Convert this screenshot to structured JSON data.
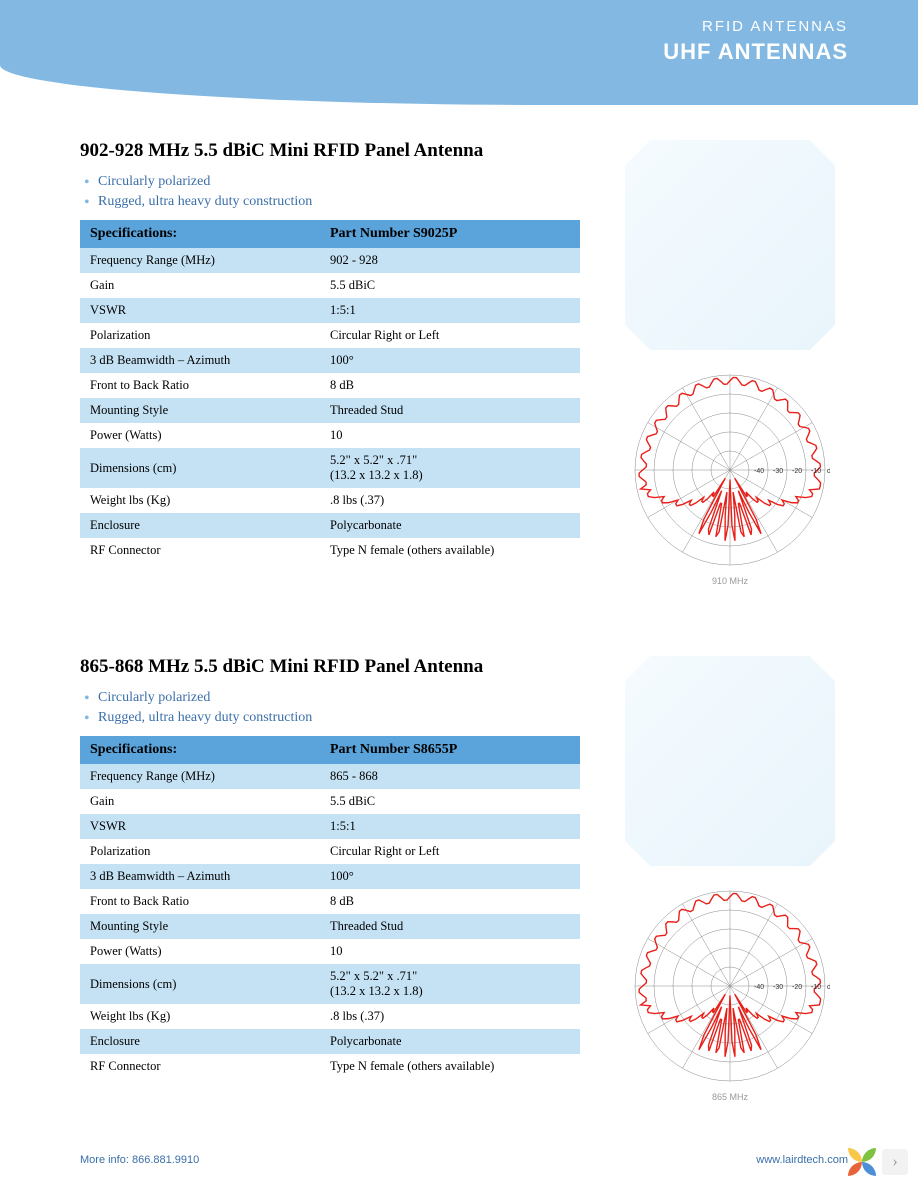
{
  "header": {
    "category": "RFID  ANTENNAS",
    "title": "UHF ANTENNAS",
    "band_color": "#82b8e2",
    "text_color": "#ffffff"
  },
  "products": [
    {
      "title": "902-928 MHz 5.5 dBiC Mini RFID Panel Antenna",
      "bullets": [
        "Circularly polarized",
        "Rugged, ultra heavy duty construction"
      ],
      "spec_header_left": "Specifications:",
      "spec_header_right": "Part Number S9025P",
      "specs": [
        {
          "label": "Frequency Range (MHz)",
          "value": "902 - 928"
        },
        {
          "label": "Gain",
          "value": "5.5 dBiC"
        },
        {
          "label": "VSWR",
          "value": "1:5:1"
        },
        {
          "label": "Polarization",
          "value": "Circular Right or Left"
        },
        {
          "label": "3 dB Beamwidth – Azimuth",
          "value": "100°"
        },
        {
          "label": "Front to Back Ratio",
          "value": "8 dB"
        },
        {
          "label": "Mounting Style",
          "value": "Threaded Stud"
        },
        {
          "label": "Power (Watts)",
          "value": "10"
        },
        {
          "label": "Dimensions (cm)",
          "value": "5.2\" x 5.2\" x .71\"\n(13.2 x 13.2 x 1.8)"
        },
        {
          "label": "Weight lbs (Kg)",
          "value": ".8 lbs (.37)"
        },
        {
          "label": "Enclosure",
          "value": "Polycarbonate"
        },
        {
          "label": "RF Connector",
          "value": "Type N female (others available)"
        }
      ],
      "polar_caption": "910 MHz",
      "polar_labels": [
        "-40",
        "-30",
        "-20",
        "-10",
        "dB"
      ],
      "polar_line_color": "#e8201a",
      "polar_grid_color": "#888888"
    },
    {
      "title": "865-868 MHz 5.5 dBiC Mini RFID Panel Antenna",
      "bullets": [
        "Circularly polarized",
        "Rugged, ultra heavy duty construction"
      ],
      "spec_header_left": "Specifications:",
      "spec_header_right": "Part Number S8655P",
      "specs": [
        {
          "label": "Frequency Range (MHz)",
          "value": "865 - 868"
        },
        {
          "label": "Gain",
          "value": "5.5 dBiC"
        },
        {
          "label": "VSWR",
          "value": "1:5:1"
        },
        {
          "label": "Polarization",
          "value": "Circular Right or Left"
        },
        {
          "label": "3 dB Beamwidth – Azimuth",
          "value": "100°"
        },
        {
          "label": "Front to Back Ratio",
          "value": "8 dB"
        },
        {
          "label": "Mounting Style",
          "value": "Threaded Stud"
        },
        {
          "label": "Power (Watts)",
          "value": "10"
        },
        {
          "label": "Dimensions (cm)",
          "value": "5.2\" x 5.2\" x .71\"\n(13.2 x 13.2 x 1.8)"
        },
        {
          "label": "Weight lbs (Kg)",
          "value": ".8 lbs (.37)"
        },
        {
          "label": "Enclosure",
          "value": "Polycarbonate"
        },
        {
          "label": "RF Connector",
          "value": "Type N female (others available)"
        }
      ],
      "polar_caption": "865 MHz",
      "polar_labels": [
        "-40",
        "-30",
        "-20",
        "-10",
        "dB"
      ],
      "polar_line_color": "#e8201a",
      "polar_grid_color": "#888888"
    }
  ],
  "table_style": {
    "header_bg": "#5aa4db",
    "row_alt_bg": "#c5e2f4",
    "row_bg": "#ffffff",
    "title_fontsize": 19,
    "spec_fontsize": 12.5
  },
  "footer": {
    "left": "More info: 866.881.9910",
    "right": "www.lairdtech.com",
    "text_color": "#3a6fa8"
  },
  "corner": {
    "next_glyph": "›"
  }
}
